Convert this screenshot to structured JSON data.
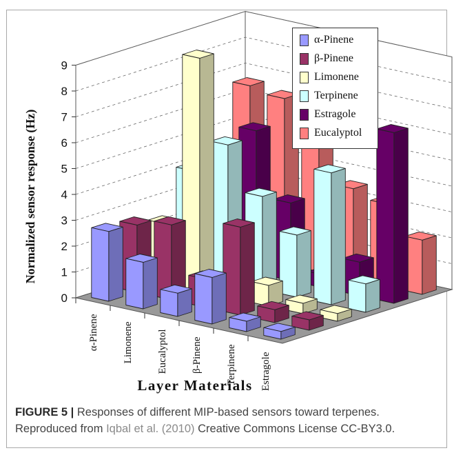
{
  "chart_data": {
    "type": "bar",
    "subtype": "3d-grouped-bar",
    "categories": [
      "α-Pinene",
      "Limonene",
      "Eucalyptol",
      "β-Pinene",
      "Terpinene",
      "Estragole"
    ],
    "series": [
      {
        "name": "α-Pinene",
        "color": "#9999ff",
        "values": [
          2.7,
          1.8,
          0.9,
          1.8,
          0.4,
          0.3
        ]
      },
      {
        "name": "β-Pinene",
        "color": "#993366",
        "values": [
          2.6,
          2.9,
          1.1,
          3.4,
          0.5,
          0.4
        ]
      },
      {
        "name": "Limonene",
        "color": "#ffffcc",
        "values": [
          2.3,
          9.0,
          0.8,
          0.8,
          0.4,
          0.3
        ]
      },
      {
        "name": "Terpinene",
        "color": "#ccffff",
        "values": [
          4.0,
          5.3,
          3.6,
          2.4,
          5.1,
          1.1
        ]
      },
      {
        "name": "Estragole",
        "color": "#660066",
        "values": [
          3.6,
          5.5,
          3.0,
          0.5,
          1.3,
          6.6
        ]
      },
      {
        "name": "Eucalyptol",
        "color": "#ff8080",
        "values": [
          6.6,
          6.4,
          7.1,
          3.5,
          3.2,
          2.1
        ]
      }
    ],
    "ylabel": "Normalized sensor response (Hz)",
    "xlabel": "Layer Materials",
    "ylim": [
      0,
      9
    ],
    "yticks": [
      "0",
      "1",
      "2",
      "3",
      "4",
      "5",
      "6",
      "7",
      "8",
      "9"
    ],
    "grid": true,
    "legend_position": "top-right"
  },
  "caption": {
    "figure_label": "FIGURE 5 |",
    "text_main": " Responses of different MIP-based sensors toward terpenes.",
    "text_pre": "Reproduced from ",
    "citation": "Iqbal et al. (2010)",
    "text_post": " Creative Commons License CC-BY3.0."
  }
}
